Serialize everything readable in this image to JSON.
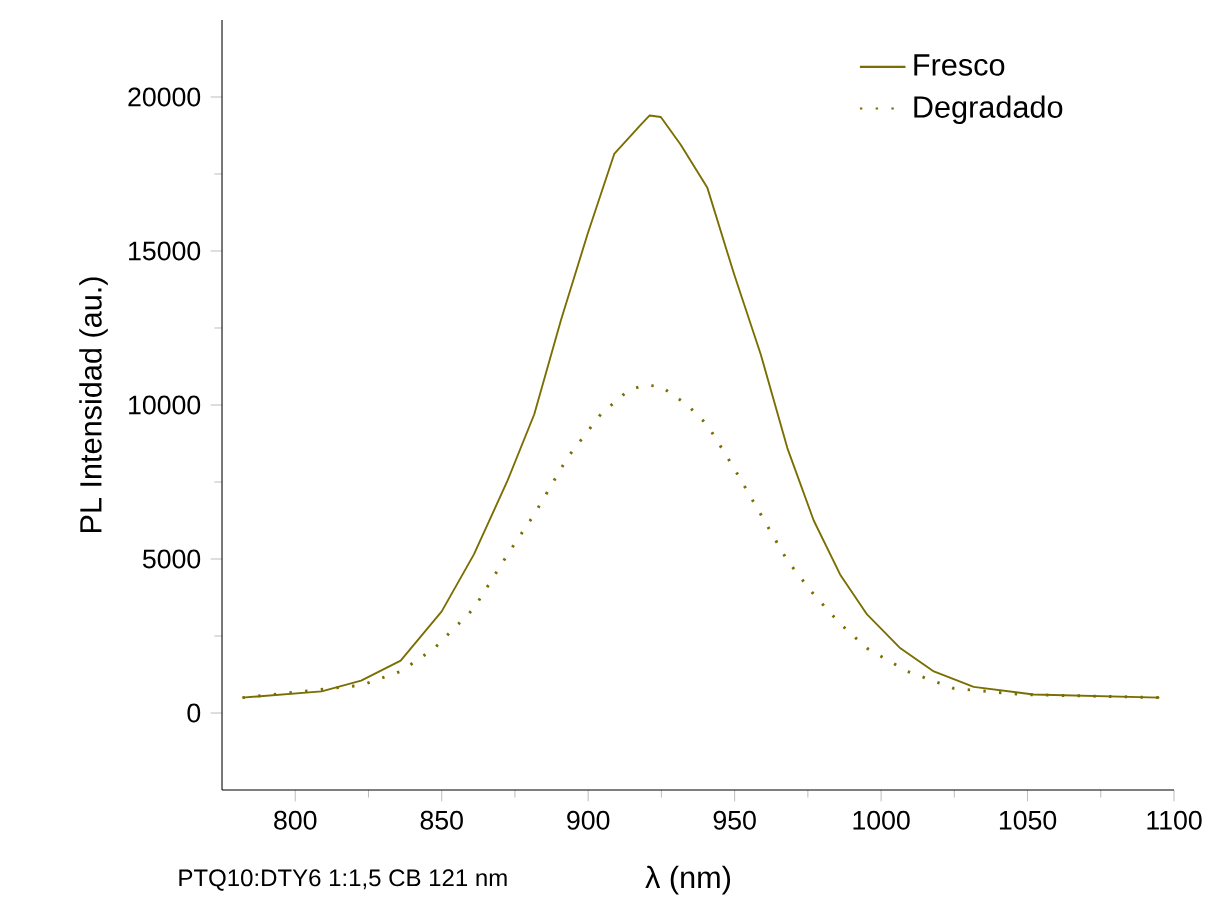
{
  "chart_data": {
    "type": "line",
    "xlabel": "λ (nm)",
    "ylabel": "PL Intensidad (au.)",
    "annotations": [
      "PTQ10:DTY6 1:1,5 CB 121 nm"
    ],
    "xlim": [
      775,
      1100
    ],
    "ylim": [
      -2500,
      22500
    ],
    "xticks": [
      800,
      850,
      900,
      950,
      1000,
      1050,
      1100
    ],
    "yticks": [
      0,
      5000,
      10000,
      15000,
      20000
    ],
    "legend": "top right",
    "marker": "none",
    "grid": false,
    "series": [
      {
        "name": "Fresco",
        "color": "#7a6e00",
        "line_style": "solid",
        "x": [
          782,
          809,
          822.5,
          836,
          850,
          861,
          872.5,
          881.6,
          890.7,
          899.8,
          908.9,
          918,
          921,
          924.8,
          931.6,
          940.7,
          949.8,
          958.9,
          968,
          977,
          986,
          995.2,
          1006.6,
          1018,
          1031.6,
          1052,
          1095
        ],
        "values": [
          500,
          700,
          1050,
          1700,
          3300,
          5150,
          7550,
          9700,
          12750,
          15550,
          18150,
          19100,
          19400,
          19350,
          18450,
          17050,
          14250,
          11650,
          8600,
          6250,
          4500,
          3200,
          2100,
          1350,
          850,
          600,
          500
        ]
      },
      {
        "name": "Degradado",
        "color": "#7a6e00",
        "line_style": "dotted",
        "x": [
          782,
          822.5,
          836,
          847.5,
          861,
          872.5,
          881.6,
          893,
          904.3,
          913.4,
          919,
          924.8,
          933.9,
          940.7,
          949.8,
          958.9,
          968,
          977,
          986,
          995.2,
          1009,
          1024.8,
          1048,
          1095
        ],
        "values": [
          500,
          900,
          1350,
          2100,
          3400,
          5150,
          6450,
          8300,
          9700,
          10450,
          10650,
          10600,
          10000,
          9350,
          7950,
          6450,
          4950,
          3850,
          2900,
          2100,
          1350,
          800,
          600,
          500
        ]
      }
    ]
  }
}
